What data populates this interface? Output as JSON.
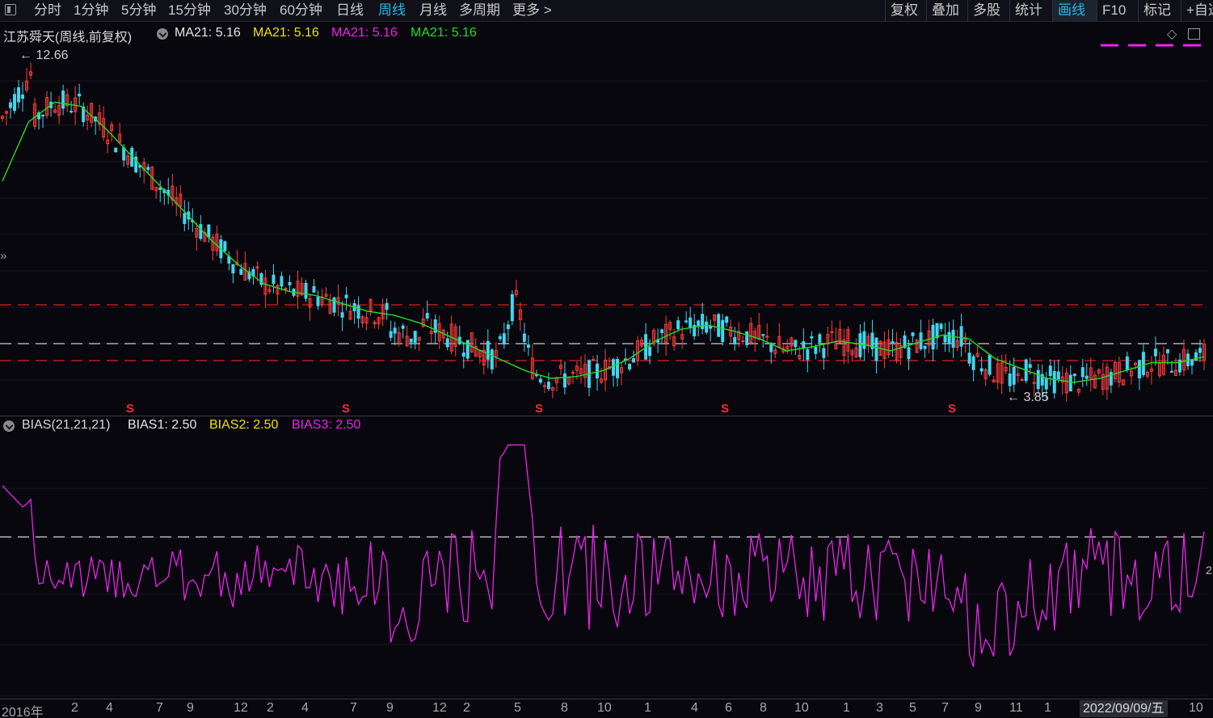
{
  "toolbar": {
    "periods": [
      "分时",
      "1分钟",
      "5分钟",
      "15分钟",
      "30分钟",
      "60分钟",
      "日线",
      "周线",
      "月线",
      "多周期",
      "更多 >"
    ],
    "active_period": "周线",
    "right_buttons": [
      "复权",
      "叠加",
      "多股",
      "统计",
      "画线",
      "F10",
      "标记",
      "+自选"
    ],
    "active_right": "画线"
  },
  "main_chart": {
    "title": "江苏舜天(周线,前复权)",
    "indicators": [
      {
        "label": "MA21: 5.16",
        "color": "#e6e6e6"
      },
      {
        "label": "MA21: 5.16",
        "color": "#f2e000"
      },
      {
        "label": "MA21: 5.16",
        "color": "#ee22ee"
      },
      {
        "label": "MA21: 5.16",
        "color": "#22dd22"
      }
    ],
    "high_label": "12.66",
    "low_label": "3.85",
    "signal_marker": "S",
    "side_icon": "double-chevron-right-icon"
  },
  "sub_chart": {
    "name": "BIAS(21,21,21)",
    "bias1": "BIAS1: 2.50",
    "bias2": "BIAS2: 2.50",
    "bias3": "BIAS3: 2.50",
    "colors": {
      "bias1": "#e6e6e6",
      "bias2": "#f2e000",
      "bias3": "#ee22ee"
    },
    "edge_label": "2"
  },
  "xaxis": {
    "labels": [
      "2016年",
      "2",
      "4",
      "7",
      "9",
      "12",
      "2",
      "4",
      "7",
      "9",
      "12",
      "2",
      "5",
      "8",
      "10",
      "1",
      "4",
      "6",
      "8",
      "10",
      "1",
      "3",
      "5",
      "7",
      "9",
      "11",
      "1",
      "10"
    ],
    "cursor_date": "2022/09/09/五"
  },
  "colors": {
    "up": "#ff3b3b",
    "down": "#3fd6ef",
    "ma": "#22dd22",
    "bias": "#ee22ee",
    "dashed_red": "#e02020",
    "dashed_white": "#d0d0d0",
    "accent": "#27b6e8"
  },
  "chart_data": {
    "type": "candlestick",
    "period": "weekly",
    "price_range": [
      3.85,
      12.66
    ],
    "highest": 12.66,
    "lowest": 3.85,
    "ma21_last": 5.16,
    "ma21_trend": [
      9.3,
      10.8,
      11.3,
      11.2,
      10.6,
      9.9,
      9.2,
      8.5,
      7.8,
      7.2,
      6.7,
      6.5,
      6.4,
      6.2,
      6.0,
      5.9,
      5.7,
      5.4,
      5.1,
      4.8,
      4.5,
      4.3,
      4.35,
      4.5,
      4.8,
      5.25,
      5.55,
      5.65,
      5.5,
      5.3,
      5.0,
      5.1,
      5.25,
      5.15,
      5.0,
      5.2,
      5.4,
      5.3,
      4.8,
      4.55,
      4.3,
      4.2,
      4.3,
      4.5,
      4.7,
      4.7,
      4.85
    ],
    "bias_last": 2.5,
    "bias_range": [
      -28,
      32
    ],
    "bias_reference": 10
  }
}
